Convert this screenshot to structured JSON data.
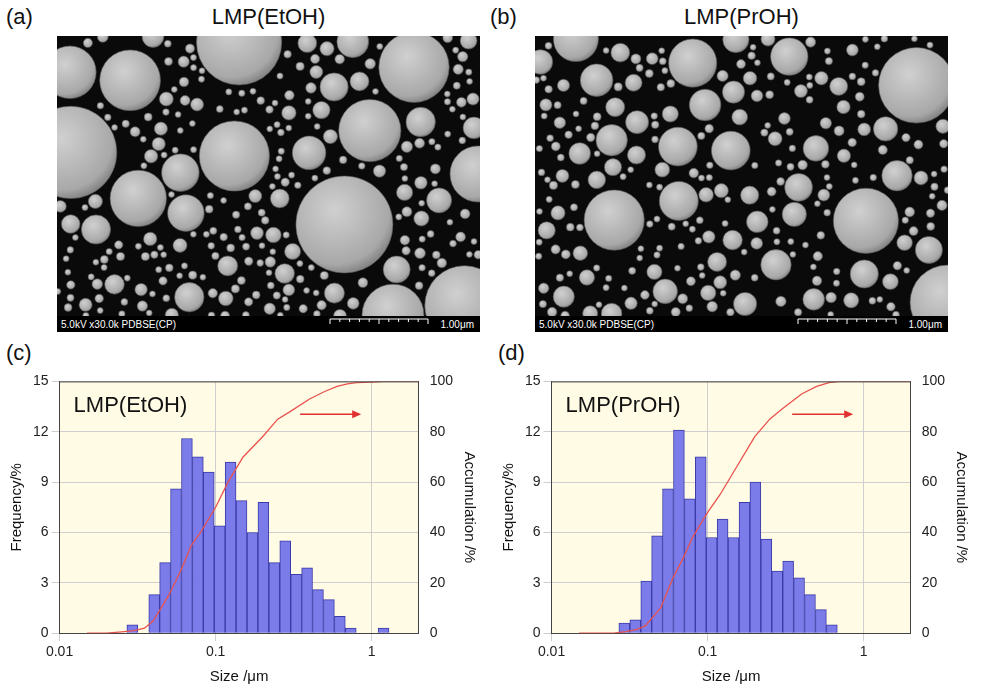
{
  "images": [
    {
      "panel_label": "(a)",
      "title": "LMP(EtOH)",
      "info": "5.0kV x30.0k PDBSE(CP)",
      "scale_bar": "1.00μm"
    },
    {
      "panel_label": "(b)",
      "title": "LMP(PrOH)",
      "info": "5.0kV x30.0k PDBSE(CP)",
      "scale_bar": "1.00μm"
    }
  ],
  "chart_data": [
    {
      "type": "histogram",
      "panel_label": "(c)",
      "title": "LMP(EtOH)",
      "x_label": "Size /μm",
      "y_label": "Frequency/%",
      "y2_label": "Accumulation /%",
      "log": "x",
      "grid": true,
      "color": "#7b7bea",
      "xlim": [
        0.01,
        2
      ],
      "xticks": [
        0.01,
        0.1,
        1
      ],
      "ylim": [
        0,
        15
      ],
      "yticks": [
        0,
        3,
        6,
        9,
        12,
        15
      ],
      "y2lim": [
        0,
        100
      ],
      "y2ticks": [
        0,
        20,
        40,
        60,
        80,
        100
      ],
      "bins": [
        0.027,
        0.0317,
        0.0373,
        0.0438,
        0.0514,
        0.0604,
        0.071,
        0.0834,
        0.098,
        0.1151,
        0.1352,
        0.1589,
        0.1867,
        0.2193,
        0.2577,
        0.3028,
        0.3557,
        0.4179,
        0.491,
        0.5769,
        0.6778,
        0.7963,
        0.9356,
        1.0992,
        1.2915
      ],
      "values": [
        0.5,
        0,
        2.3,
        4.2,
        8.6,
        11.6,
        10.5,
        9.6,
        6.4,
        10.2,
        7.9,
        6.0,
        7.8,
        4.2,
        5.5,
        3.5,
        3.9,
        2.6,
        2.0,
        1.0,
        0.3,
        0,
        0,
        0.3
      ],
      "series": [
        {
          "type": "line",
          "axis": "y2",
          "color": "#e8524e",
          "x": [
            0.015,
            0.02,
            0.025,
            0.03,
            0.035,
            0.04,
            0.05,
            0.06,
            0.07,
            0.08,
            0.1,
            0.12,
            0.15,
            0.2,
            0.25,
            0.3,
            0.4,
            0.5,
            0.6,
            0.7,
            0.8,
            1,
            1.2,
            1.5,
            2
          ],
          "values": [
            0,
            0,
            0.5,
            1,
            2,
            5,
            15,
            25,
            35,
            40,
            50,
            60,
            70,
            78,
            85,
            88,
            93,
            96,
            98,
            99,
            99.5,
            99.7,
            100,
            100,
            100
          ]
        }
      ]
    },
    {
      "type": "histogram",
      "panel_label": "(d)",
      "title": "LMP(PrOH)",
      "x_label": "Size /μm",
      "y_label": "Frequency/%",
      "y2_label": "Accumulation /%",
      "log": "x",
      "grid": true,
      "color": "#7b7bea",
      "xlim": [
        0.01,
        2
      ],
      "xticks": [
        0.01,
        0.1,
        1
      ],
      "ylim": [
        0,
        15
      ],
      "yticks": [
        0,
        3,
        6,
        9,
        12,
        15
      ],
      "y2lim": [
        0,
        100
      ],
      "y2ticks": [
        0,
        20,
        40,
        60,
        80,
        100
      ],
      "bins": [
        0.027,
        0.0317,
        0.0373,
        0.0438,
        0.0514,
        0.0604,
        0.071,
        0.0834,
        0.098,
        0.1151,
        0.1352,
        0.1589,
        0.1867,
        0.2193,
        0.2577,
        0.3028,
        0.3557,
        0.4179,
        0.491,
        0.5769,
        0.6778
      ],
      "values": [
        0.6,
        0.8,
        3.1,
        5.8,
        8.6,
        12.1,
        8.0,
        10.5,
        5.7,
        6.8,
        5.7,
        7.8,
        9.0,
        5.6,
        3.7,
        4.3,
        3.3,
        2.3,
        1.4,
        0.5
      ],
      "series": [
        {
          "type": "line",
          "axis": "y2",
          "color": "#e8524e",
          "x": [
            0.015,
            0.02,
            0.025,
            0.03,
            0.035,
            0.04,
            0.05,
            0.06,
            0.07,
            0.08,
            0.1,
            0.12,
            0.15,
            0.2,
            0.25,
            0.3,
            0.4,
            0.5,
            0.6,
            0.7,
            0.8,
            1,
            1.2,
            1.5,
            2
          ],
          "values": [
            0,
            0,
            0,
            0.6,
            1.4,
            3,
            10,
            22,
            30,
            38,
            48,
            55,
            65,
            78,
            85,
            89,
            95,
            98,
            99.5,
            100,
            100,
            100,
            100,
            100,
            100
          ]
        }
      ]
    }
  ]
}
